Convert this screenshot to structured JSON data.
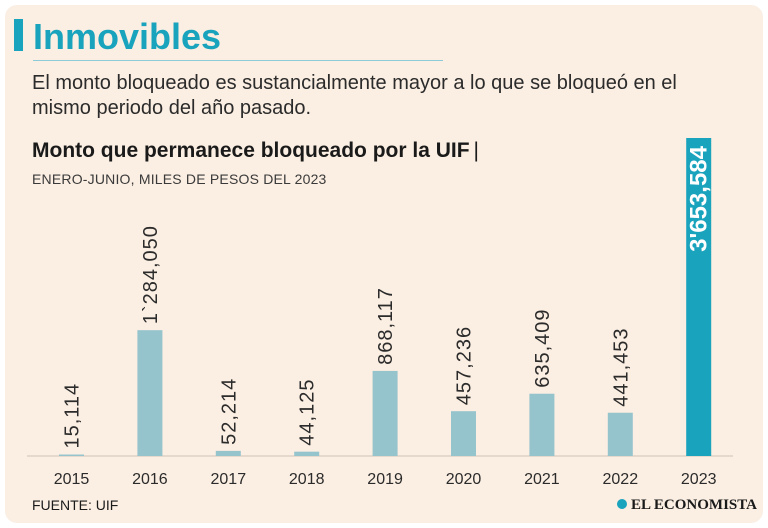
{
  "header": {
    "title": "Inmovibles",
    "subtitle": "El monto bloqueado es sustancialmente mayor a lo que se bloqueó en el mismo periodo del año pasado."
  },
  "chart_data": {
    "type": "bar",
    "title": "Monto que permanece bloqueado por la UIF",
    "title_separator": "|",
    "subtitle": "ENERO-JUNIO, MILES DE PESOS DEL 2023",
    "categories": [
      "2015",
      "2016",
      "2017",
      "2018",
      "2019",
      "2020",
      "2021",
      "2022",
      "2023"
    ],
    "values": [
      15114,
      1284050,
      52214,
      44125,
      868117,
      457236,
      635409,
      441453,
      3653584
    ],
    "value_labels": [
      "15,114",
      "1`284,050",
      "52,214",
      "44,125",
      "868,117",
      "457,236",
      "635,409",
      "441,453",
      "3'653,584"
    ],
    "highlight_index": 8,
    "xlabel": "",
    "ylabel": "",
    "colors": {
      "bar": "#95c4cd",
      "highlight": "#1aa3bd",
      "label": "#2b2b2b",
      "highlight_label": "#1aa3bd"
    }
  },
  "footer": {
    "source": "FUENTE: UIF",
    "brand": "EL ECONOMISTA",
    "brand_icon": "globe-icon"
  }
}
